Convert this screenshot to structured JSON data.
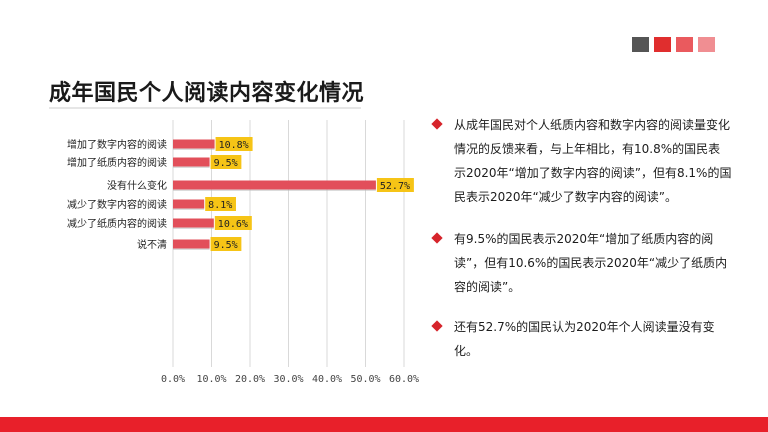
{
  "header": {
    "title": "成年国民个人阅读内容变化情况",
    "decor_squares": [
      {
        "name": "square-dark-gray",
        "color": "#555555"
      },
      {
        "name": "square-red",
        "color": "#e02e2e"
      },
      {
        "name": "square-medium-red",
        "color": "#ea5a5e"
      },
      {
        "name": "square-light-red",
        "color": "#f08e92"
      }
    ]
  },
  "chart_data": {
    "type": "bar",
    "orientation": "horizontal",
    "categories": [
      "增加了数字内容的阅读",
      "增加了纸质内容的阅读",
      "没有什么变化",
      "减少了数字内容的阅读",
      "减少了纸质内容的阅读",
      "说不清"
    ],
    "values": [
      10.8,
      9.5,
      52.7,
      8.1,
      10.6,
      9.5
    ],
    "data_labels": [
      "10.8%",
      "9.5%",
      "52.7%",
      "8.1%",
      "10.6%",
      "9.5%"
    ],
    "xticks": [
      "0.0%",
      "10.0%",
      "20.0%",
      "30.0%",
      "40.0%",
      "50.0%",
      "60.0%"
    ],
    "xlim": [
      0,
      60
    ],
    "grid": true,
    "bar_color": "#e24f5a",
    "label_bg_color": "#f6c416"
  },
  "bullets": [
    {
      "text": "从成年国民对个人纸质内容和数字内容的阅读量变化情况的反馈来看，与上年相比，有10.8%的国民表示2020年“增加了数字内容的阅读”，但有8.1%的国民表示2020年“减少了数字内容的阅读”。"
    },
    {
      "text": "有9.5%的国民表示2020年“增加了纸质内容的阅读”，但有10.6%的国民表示2020年“减少了纸质内容的阅读”。"
    },
    {
      "text": "还有52.7%的国民认为2020年个人阅读量没有变化。"
    }
  ],
  "colors": {
    "accent": "#d6242b",
    "footer": "#e8202a"
  }
}
